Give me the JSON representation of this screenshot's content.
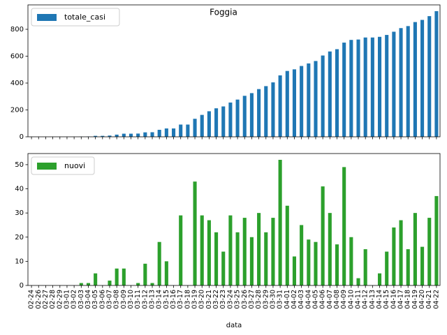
{
  "chart_data": [
    {
      "type": "bar",
      "title": "Foggia",
      "series": [
        {
          "name": "totale_casi",
          "color": "#1f77b4",
          "values": [
            0,
            0,
            0,
            0,
            0,
            0,
            0,
            1,
            2,
            7,
            7,
            9,
            16,
            23,
            23,
            24,
            33,
            34,
            52,
            62,
            62,
            91,
            91,
            134,
            163,
            190,
            212,
            226,
            255,
            277,
            305,
            325,
            355,
            377,
            405,
            457,
            490,
            502,
            527,
            546,
            564,
            605,
            635,
            652,
            701,
            721,
            724,
            739,
            739,
            744,
            758,
            782,
            809,
            824,
            854,
            870,
            898,
            935
          ]
        }
      ],
      "ylim": [
        0,
        981.75
      ],
      "yticks": [
        0,
        200,
        400,
        600,
        800
      ],
      "legend": "upper left"
    },
    {
      "type": "bar",
      "x_label": "data",
      "categories": [
        "02-24",
        "02-26",
        "02-27",
        "02-28",
        "02-29",
        "03-01",
        "03-02",
        "03-03",
        "03-04",
        "03-05",
        "03-06",
        "03-07",
        "03-08",
        "03-09",
        "03-10",
        "03-11",
        "03-12",
        "03-13",
        "03-14",
        "03-15",
        "03-16",
        "03-17",
        "03-18",
        "03-19",
        "03-20",
        "03-21",
        "03-22",
        "03-23",
        "03-24",
        "03-25",
        "03-26",
        "03-27",
        "03-28",
        "03-29",
        "03-30",
        "03-31",
        "04-01",
        "04-02",
        "04-03",
        "04-04",
        "04-05",
        "04-06",
        "04-07",
        "04-08",
        "04-09",
        "04-10",
        "04-11",
        "04-12",
        "04-13",
        "04-14",
        "04-15",
        "04-16",
        "04-17",
        "04-18",
        "04-19",
        "04-20",
        "04-21",
        "04-22"
      ],
      "series": [
        {
          "name": "nuovi",
          "color": "#2ca02c",
          "values": [
            0,
            0,
            0,
            0,
            0,
            0,
            0,
            1,
            1,
            5,
            0,
            2,
            7,
            7,
            0,
            1,
            9,
            1,
            18,
            10,
            0,
            29,
            0,
            43,
            29,
            27,
            22,
            14,
            29,
            22,
            28,
            20,
            30,
            22,
            28,
            52,
            33,
            12,
            25,
            19,
            18,
            41,
            30,
            17,
            49,
            20,
            3,
            15,
            0,
            5,
            14,
            24,
            27,
            15,
            30,
            16,
            28,
            37
          ]
        }
      ],
      "ylim": [
        0,
        54.6
      ],
      "yticks": [
        0,
        10,
        20,
        30,
        40,
        50
      ],
      "legend": "upper left"
    }
  ]
}
